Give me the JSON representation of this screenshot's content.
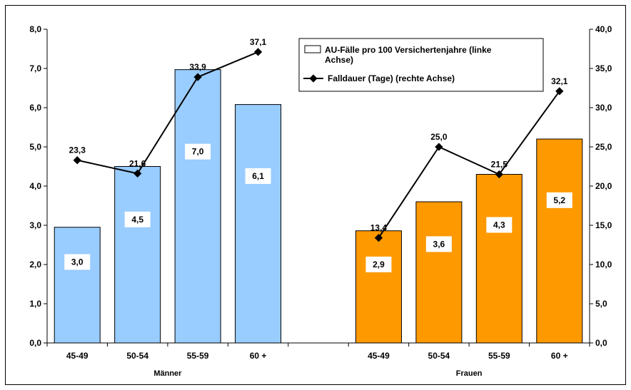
{
  "chart_data": {
    "type": "bar",
    "categories": [
      "45-49",
      "50-54",
      "55-59",
      "60 +",
      "",
      "45-49",
      "50-54",
      "55-59",
      "60 +"
    ],
    "groups": [
      {
        "label": "Männer",
        "categories": [
          "45-49",
          "50-54",
          "55-59",
          "60 +"
        ]
      },
      {
        "label": "Frauen",
        "categories": [
          "45-49",
          "50-54",
          "55-59",
          "60 +"
        ]
      }
    ],
    "series": [
      {
        "name": "AU-Fälle pro 100 Versichertenjahre (linke Achse)",
        "type": "bar",
        "axis": "left",
        "values": [
          2.95,
          4.5,
          6.97,
          6.08,
          null,
          2.86,
          3.6,
          4.3,
          5.2
        ],
        "labels": [
          "3,0",
          "4,5",
          "7,0",
          "6,1",
          null,
          "2,9",
          "3,6",
          "4,3",
          "5,2"
        ],
        "colors": [
          "#99ccff",
          "#99ccff",
          "#99ccff",
          "#99ccff",
          null,
          "#ff9900",
          "#ff9900",
          "#ff9900",
          "#ff9900"
        ]
      },
      {
        "name": "Falldauer (Tage) (rechte Achse)",
        "type": "line",
        "axis": "right",
        "values": [
          23.3,
          21.6,
          33.9,
          37.1,
          null,
          13.4,
          25.0,
          21.5,
          32.1
        ],
        "labels": [
          "23,3",
          "21,6",
          "33,9",
          "37,1",
          null,
          "13,4",
          "25,0",
          "21,5",
          "32,1"
        ],
        "color": "#000000"
      }
    ],
    "left_axis": {
      "min": 0,
      "max": 8,
      "ticks": [
        "0,0",
        "1,0",
        "2,0",
        "3,0",
        "4,0",
        "5,0",
        "6,0",
        "7,0",
        "8,0"
      ]
    },
    "right_axis": {
      "min": 0,
      "max": 40,
      "ticks": [
        "0,0",
        "5,0",
        "10,0",
        "15,0",
        "20,0",
        "25,0",
        "30,0",
        "35,0",
        "40,0"
      ]
    },
    "legend": {
      "position": "top-right",
      "entries": [
        {
          "lines": [
            "AU-Fälle pro 100 Versichertenjahre (linke",
            "Achse)"
          ],
          "kind": "bar"
        },
        {
          "lines": [
            "Falldauer (Tage) (rechte Achse)"
          ],
          "kind": "line"
        }
      ]
    },
    "grid": false
  }
}
